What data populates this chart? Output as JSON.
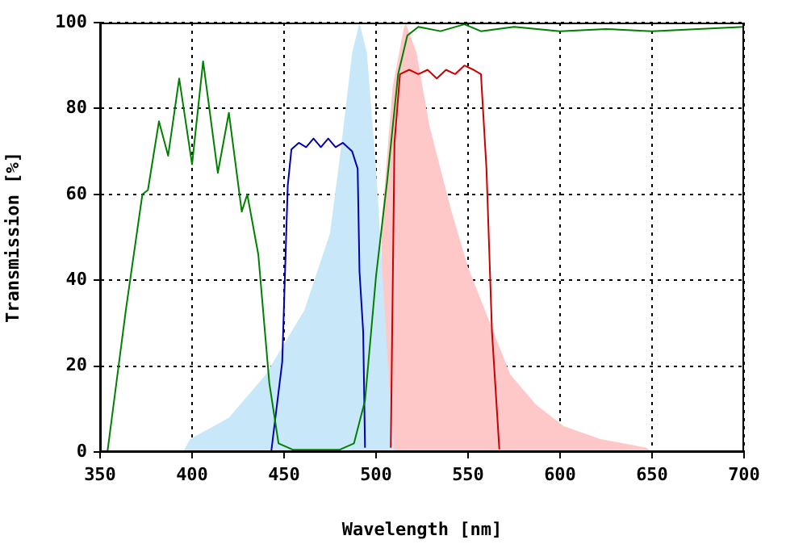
{
  "chart_data": {
    "type": "line",
    "xlabel": "Wavelength [nm]",
    "ylabel": "Transmission [%]",
    "xlim": [
      350,
      700
    ],
    "ylim": [
      0,
      100
    ],
    "xticks": [
      350,
      400,
      450,
      500,
      550,
      600,
      650,
      700
    ],
    "yticks": [
      0,
      20,
      40,
      60,
      80,
      100
    ],
    "grid": true,
    "legend": false,
    "marker": "none",
    "series": [
      {
        "type": "area",
        "color": "#c8e8fa",
        "x": [
          395,
          399,
          420,
          440,
          461,
          475,
          481,
          487,
          491,
          495,
          500,
          504,
          507,
          510
        ],
        "values": [
          0,
          3,
          8,
          18,
          33,
          51,
          71,
          93,
          100,
          93,
          66,
          38,
          16,
          0
        ]
      },
      {
        "type": "area",
        "color": "#ffc8c8",
        "x": [
          503,
          509,
          515,
          516,
          522,
          529,
          541,
          550,
          561,
          573,
          587,
          602,
          622,
          647,
          650
        ],
        "values": [
          53,
          85,
          98.5,
          100,
          93,
          76,
          56,
          43,
          31,
          18,
          11,
          6,
          3,
          1,
          0
        ]
      },
      {
        "type": "line",
        "color": "#008000",
        "x": [
          354,
          364,
          373,
          376,
          382,
          387,
          393,
          400,
          406,
          414,
          420,
          427,
          430,
          436,
          442,
          447,
          455,
          470,
          480,
          488,
          494,
          500,
          506,
          512,
          517,
          523,
          535,
          548,
          557,
          575,
          600,
          625,
          650,
          675,
          700
        ],
        "values": [
          0,
          33,
          60,
          61,
          77,
          69,
          87,
          67,
          91,
          65,
          79,
          56,
          60,
          46,
          16,
          2,
          0.5,
          0.5,
          0.5,
          2,
          12,
          41,
          63,
          88,
          97,
          99,
          98,
          99.6,
          98,
          99,
          98,
          98.5,
          98,
          98.5,
          99
        ]
      },
      {
        "type": "line",
        "color": "#0000b0",
        "x": [
          443,
          449,
          452,
          454,
          458,
          462,
          466,
          470,
          474,
          478,
          482,
          487,
          490,
          491,
          493,
          494
        ],
        "values": [
          0,
          21,
          62,
          70.5,
          72,
          71,
          73,
          71,
          73,
          71,
          72,
          70,
          66,
          42,
          28,
          1
        ]
      },
      {
        "type": "line",
        "color": "#cc0000",
        "x": [
          508,
          510,
          513,
          518,
          523,
          528,
          533,
          538,
          543,
          548,
          553,
          557,
          560,
          563,
          567
        ],
        "values": [
          1,
          72,
          88,
          89,
          88,
          89,
          87,
          89,
          88,
          90,
          89,
          88,
          66,
          28,
          0.6
        ]
      }
    ]
  }
}
